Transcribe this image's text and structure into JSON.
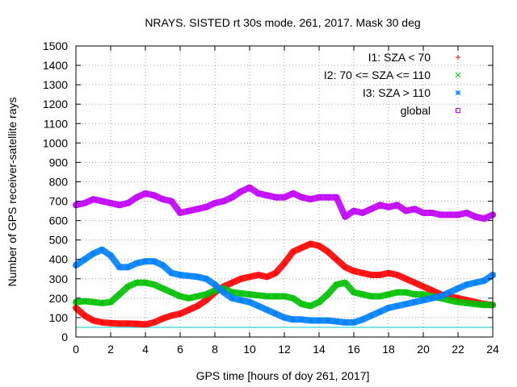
{
  "chart_data": {
    "type": "scatter",
    "title": "NRAYS. SISTED rt 30s mode. 261, 2017. Mask 30 deg",
    "xlabel": "GPS time [hours of doy 261, 2017]",
    "ylabel": "Number of GPS receiver-satellite rays",
    "xlim": [
      0,
      24
    ],
    "ylim": [
      0,
      1500
    ],
    "xticks": [
      "0",
      "2",
      "4",
      "6",
      "8",
      "10",
      "12",
      "14",
      "16",
      "18",
      "20",
      "22",
      "24"
    ],
    "yticks": [
      "0",
      "100",
      "200",
      "300",
      "400",
      "500",
      "600",
      "700",
      "800",
      "900",
      "1000",
      "1100",
      "1200",
      "1300",
      "1400",
      "1500"
    ],
    "grid": true,
    "legend_position": "top-right",
    "reference_line": {
      "y": 50,
      "color": "#00c8c8"
    },
    "series": [
      {
        "name": "I1: SZA < 70",
        "marker": "+",
        "color": "#ff0000",
        "x": [
          0,
          0.5,
          1,
          1.5,
          2,
          2.5,
          3,
          3.5,
          4,
          4.5,
          5,
          5.5,
          6,
          6.5,
          7,
          7.5,
          8,
          8.5,
          9,
          9.5,
          10,
          10.5,
          11,
          11.5,
          12,
          12.5,
          13,
          13.5,
          14,
          14.5,
          15,
          15.5,
          16,
          16.5,
          17,
          17.5,
          18,
          18.5,
          19,
          19.5,
          20,
          20.5,
          21,
          21.5,
          22,
          22.5,
          23,
          23.5,
          24
        ],
        "y": [
          150,
          110,
          85,
          75,
          72,
          70,
          70,
          68,
          65,
          75,
          95,
          110,
          120,
          140,
          160,
          190,
          230,
          260,
          280,
          300,
          310,
          320,
          310,
          330,
          380,
          440,
          460,
          480,
          470,
          440,
          400,
          360,
          340,
          330,
          320,
          320,
          330,
          320,
          300,
          280,
          260,
          240,
          220,
          210,
          200,
          190,
          180,
          170,
          165
        ]
      },
      {
        "name": "I2: 70 <= SZA <= 110",
        "marker": "x",
        "color": "#00c000",
        "x": [
          0,
          0.5,
          1,
          1.5,
          2,
          2.5,
          3,
          3.5,
          4,
          4.5,
          5,
          5.5,
          6,
          6.5,
          7,
          7.5,
          8,
          8.5,
          9,
          9.5,
          10,
          10.5,
          11,
          11.5,
          12,
          12.5,
          13,
          13.5,
          14,
          14.5,
          15,
          15.5,
          16,
          16.5,
          17,
          17.5,
          18,
          18.5,
          19,
          19.5,
          20,
          20.5,
          21,
          21.5,
          22,
          22.5,
          23,
          23.5,
          24
        ],
        "y": [
          180,
          185,
          180,
          175,
          180,
          220,
          260,
          280,
          280,
          270,
          250,
          230,
          210,
          200,
          210,
          220,
          240,
          250,
          230,
          225,
          220,
          215,
          210,
          210,
          210,
          200,
          170,
          160,
          180,
          220,
          270,
          280,
          230,
          220,
          210,
          210,
          220,
          230,
          230,
          220,
          220,
          210,
          200,
          190,
          180,
          175,
          170,
          165,
          165
        ]
      },
      {
        "name": "I3: SZA > 110",
        "marker": "*",
        "color": "#0080ff",
        "x": [
          0,
          0.5,
          1,
          1.5,
          2,
          2.5,
          3,
          3.5,
          4,
          4.5,
          5,
          5.5,
          6,
          6.5,
          7,
          7.5,
          8,
          8.5,
          9,
          9.5,
          10,
          10.5,
          11,
          11.5,
          12,
          12.5,
          13,
          13.5,
          14,
          14.5,
          15,
          15.5,
          16,
          16.5,
          17,
          17.5,
          18,
          18.5,
          19,
          19.5,
          20,
          20.5,
          21,
          21.5,
          22,
          22.5,
          23,
          23.5,
          24
        ],
        "y": [
          370,
          400,
          430,
          450,
          420,
          360,
          360,
          380,
          390,
          390,
          370,
          330,
          320,
          315,
          310,
          300,
          270,
          230,
          200,
          190,
          180,
          160,
          140,
          120,
          100,
          90,
          90,
          85,
          85,
          85,
          80,
          75,
          75,
          90,
          110,
          130,
          150,
          160,
          170,
          180,
          190,
          200,
          210,
          230,
          250,
          270,
          280,
          290,
          320
        ]
      },
      {
        "name": "global",
        "marker": "square",
        "color": "#c000ff",
        "x": [
          0,
          0.5,
          1,
          1.5,
          2,
          2.5,
          3,
          3.5,
          4,
          4.5,
          5,
          5.5,
          6,
          6.5,
          7,
          7.5,
          8,
          8.5,
          9,
          9.5,
          10,
          10.5,
          11,
          11.5,
          12,
          12.5,
          13,
          13.5,
          14,
          14.5,
          15,
          15.5,
          16,
          16.5,
          17,
          17.5,
          18,
          18.5,
          19,
          19.5,
          20,
          20.5,
          21,
          21.5,
          22,
          22.5,
          23,
          23.5,
          24
        ],
        "y": [
          680,
          690,
          710,
          700,
          690,
          680,
          690,
          720,
          740,
          730,
          710,
          700,
          640,
          650,
          660,
          670,
          690,
          700,
          720,
          750,
          770,
          740,
          730,
          720,
          720,
          740,
          720,
          710,
          720,
          720,
          720,
          620,
          650,
          640,
          660,
          680,
          670,
          680,
          650,
          660,
          640,
          640,
          630,
          630,
          630,
          640,
          620,
          610,
          630
        ]
      }
    ]
  }
}
